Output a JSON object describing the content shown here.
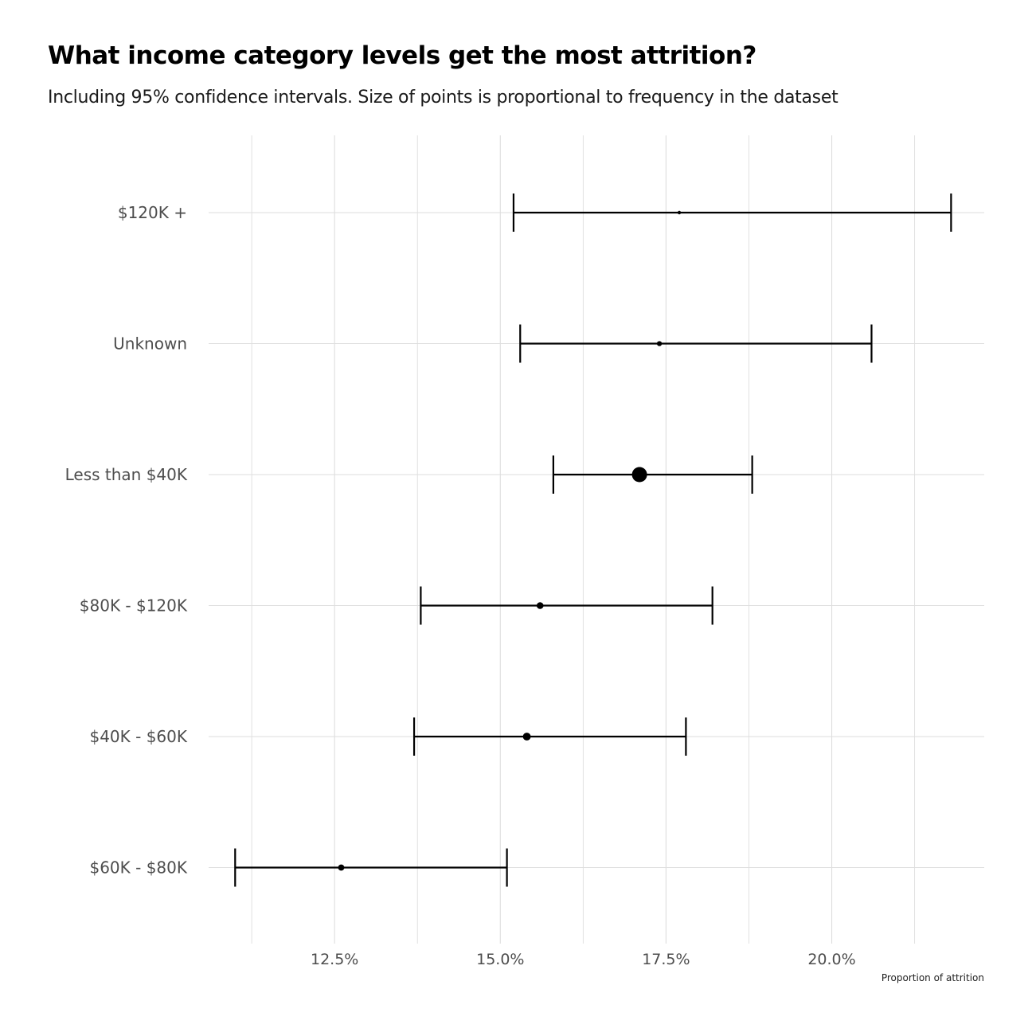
{
  "title": "What income category levels get the most attrition?",
  "subtitle": "Including 95% confidence intervals. Size of points is proportional to frequency in the dataset",
  "chart_data": {
    "type": "scatter",
    "subtype": "point-with-errorbars",
    "title": "What income category levels get the most attrition?",
    "subtitle": "Including 95% confidence intervals. Size of points is proportional to frequency in the dataset",
    "xlabel": "Proportion of attrition",
    "ylabel": "",
    "x_ticks": [
      12.5,
      15.0,
      17.5,
      20.0
    ],
    "x_tick_labels": [
      "12.5%",
      "15.0%",
      "17.5%",
      "20.0%"
    ],
    "xlim": [
      10.6,
      22.3
    ],
    "grid": true,
    "legend": "none",
    "categories": [
      "$120K +",
      "Unknown",
      "Less than $40K",
      "$80K - $120K",
      "$40K - $60K",
      "$60K - $80K"
    ],
    "estimate": [
      17.7,
      17.4,
      17.1,
      15.6,
      15.4,
      12.6
    ],
    "lower": [
      15.2,
      15.3,
      15.8,
      13.8,
      13.7,
      11.0
    ],
    "upper": [
      21.8,
      20.6,
      18.8,
      18.2,
      17.8,
      15.1
    ],
    "count": [
      730,
      1110,
      3560,
      1540,
      1790,
      1400
    ],
    "colors": {
      "point": "#000000",
      "errorbar": "#000000",
      "grid": "#dedede",
      "background": "#ffffff"
    }
  }
}
